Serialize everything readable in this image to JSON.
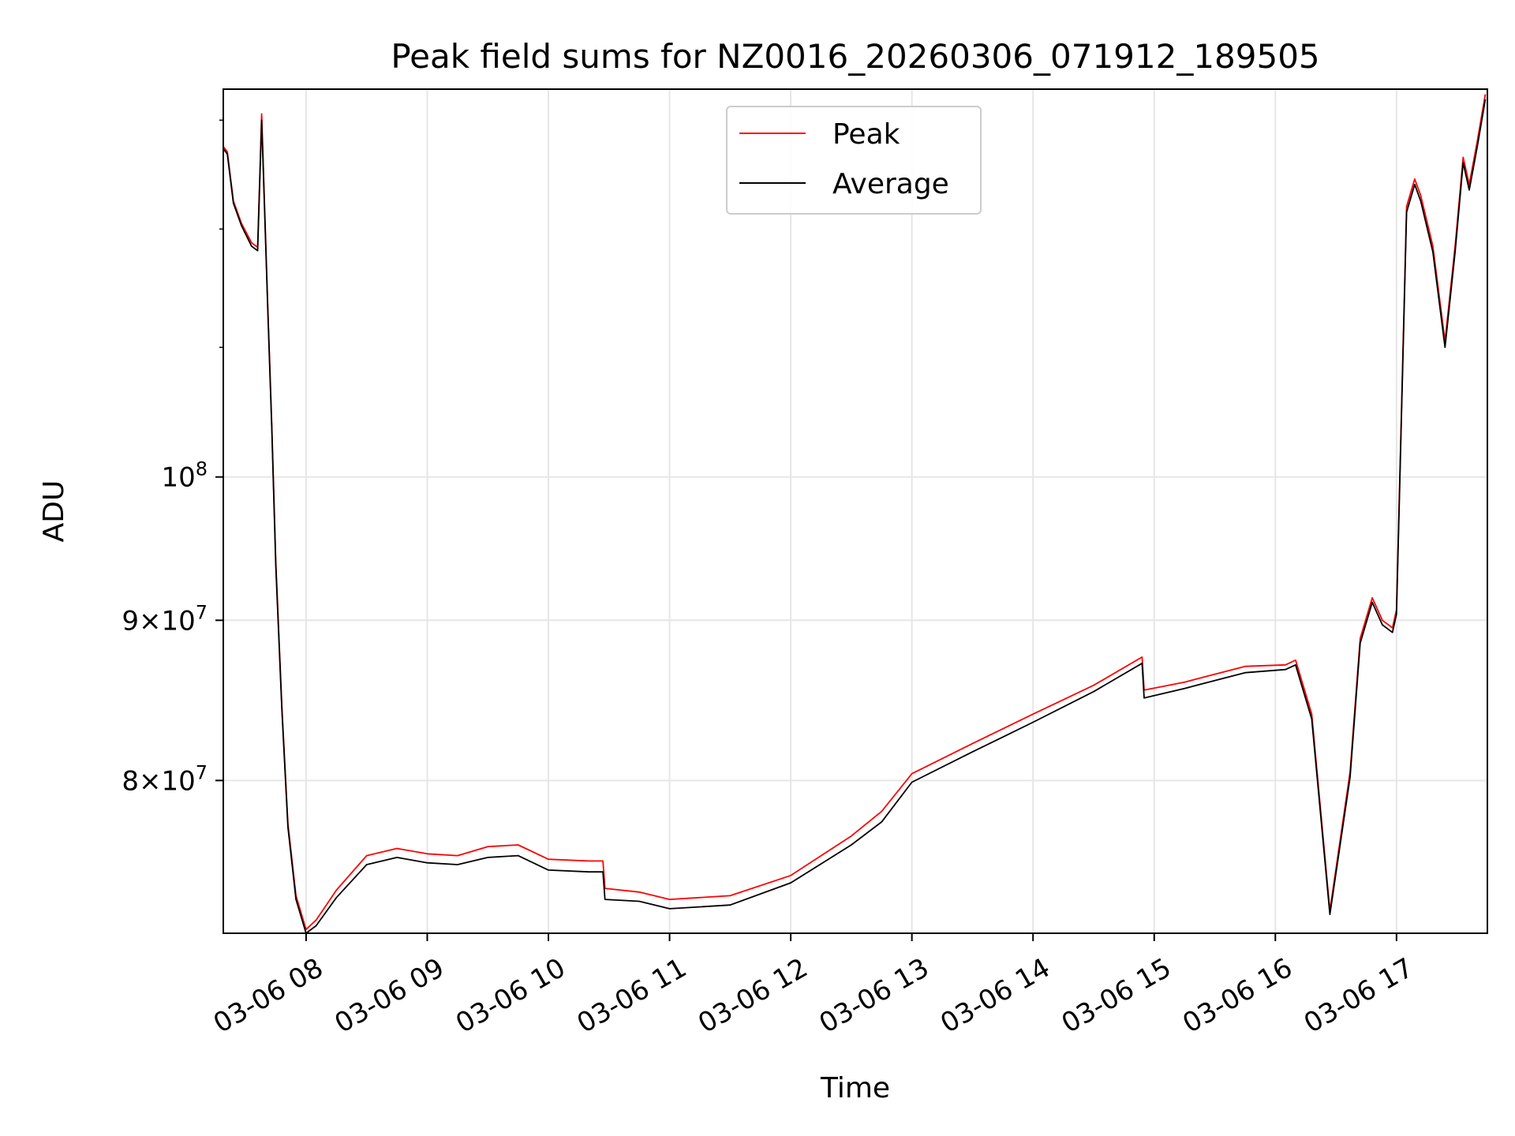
{
  "chart_data": {
    "type": "line",
    "title": "Peak field sums for NZ0016_20260306_071912_189505",
    "xlabel": "Time",
    "ylabel": "ADU",
    "yscale": "log",
    "grid": true,
    "legend_position": "upper center",
    "xlim": [
      "2026-03-06 07:19",
      "2026-03-06 17:45"
    ],
    "ylim": [
      71500000,
      133000000
    ],
    "x_ticks": [
      "03-06 08",
      "03-06 09",
      "03-06 10",
      "03-06 11",
      "03-06 12",
      "03-06 13",
      "03-06 14",
      "03-06 15",
      "03-06 16",
      "03-06 17"
    ],
    "y_ticks": [
      {
        "value": 80000000,
        "label": "8 × 10^7"
      },
      {
        "value": 90000000,
        "label": "9 × 10^7"
      },
      {
        "value": 100000000,
        "label": "10^8"
      }
    ],
    "series": [
      {
        "name": "Peak",
        "color": "#ff0000",
        "x": [
          "2026-03-06 07:19",
          "2026-03-06 07:21",
          "2026-03-06 07:24",
          "2026-03-06 07:28",
          "2026-03-06 07:33",
          "2026-03-06 07:36",
          "2026-03-06 07:38",
          "2026-03-06 07:40",
          "2026-03-06 07:41",
          "2026-03-06 07:43",
          "2026-03-06 07:45",
          "2026-03-06 07:48",
          "2026-03-06 07:51",
          "2026-03-06 07:55",
          "2026-03-06 08:00",
          "2026-03-06 08:05",
          "2026-03-06 08:15",
          "2026-03-06 08:30",
          "2026-03-06 08:45",
          "2026-03-06 09:00",
          "2026-03-06 09:15",
          "2026-03-06 09:30",
          "2026-03-06 09:45",
          "2026-03-06 10:00",
          "2026-03-06 10:20",
          "2026-03-06 10:27",
          "2026-03-06 10:28",
          "2026-03-06 10:45",
          "2026-03-06 11:00",
          "2026-03-06 11:30",
          "2026-03-06 12:00",
          "2026-03-06 12:30",
          "2026-03-06 12:45",
          "2026-03-06 13:00",
          "2026-03-06 13:30",
          "2026-03-06 14:00",
          "2026-03-06 14:30",
          "2026-03-06 14:54",
          "2026-03-06 14:55",
          "2026-03-06 15:15",
          "2026-03-06 15:45",
          "2026-03-06 16:05",
          "2026-03-06 16:10",
          "2026-03-06 16:18",
          "2026-03-06 16:27",
          "2026-03-06 16:37",
          "2026-03-06 16:42",
          "2026-03-06 16:48",
          "2026-03-06 16:53",
          "2026-03-06 16:58",
          "2026-03-06 17:00",
          "2026-03-06 17:05",
          "2026-03-06 17:09",
          "2026-03-06 17:12",
          "2026-03-06 17:18",
          "2026-03-06 17:24",
          "2026-03-06 17:29",
          "2026-03-06 17:33",
          "2026-03-06 17:36",
          "2026-03-06 17:40",
          "2026-03-06 17:44"
        ],
        "y": [
          127500000,
          127000000,
          122500000,
          120500000,
          118800000,
          118400000,
          130600000,
          119000000,
          113500000,
          104000000,
          94000000,
          84500000,
          77500000,
          73500000,
          71700000,
          72200000,
          73800000,
          75700000,
          76100000,
          75800000,
          75700000,
          76200000,
          76300000,
          75500000,
          75400000,
          75400000,
          73900000,
          73700000,
          73300000,
          73500000,
          74600000,
          76800000,
          78200000,
          80400000,
          82200000,
          84000000,
          85800000,
          87600000,
          85500000,
          86000000,
          87000000,
          87100000,
          87400000,
          84000000,
          72700000,
          80500000,
          88800000,
          91500000,
          90000000,
          89500000,
          90700000,
          122000000,
          124500000,
          123000000,
          118500000,
          110500000,
          118500000,
          126500000,
          124000000,
          128000000,
          132500000
        ]
      },
      {
        "name": "Average",
        "color": "#000000",
        "x": [
          "2026-03-06 07:19",
          "2026-03-06 07:21",
          "2026-03-06 07:24",
          "2026-03-06 07:28",
          "2026-03-06 07:33",
          "2026-03-06 07:36",
          "2026-03-06 07:38",
          "2026-03-06 07:40",
          "2026-03-06 07:41",
          "2026-03-06 07:43",
          "2026-03-06 07:45",
          "2026-03-06 07:48",
          "2026-03-06 07:51",
          "2026-03-06 07:55",
          "2026-03-06 08:00",
          "2026-03-06 08:05",
          "2026-03-06 08:15",
          "2026-03-06 08:30",
          "2026-03-06 08:45",
          "2026-03-06 09:00",
          "2026-03-06 09:15",
          "2026-03-06 09:30",
          "2026-03-06 09:45",
          "2026-03-06 10:00",
          "2026-03-06 10:20",
          "2026-03-06 10:27",
          "2026-03-06 10:28",
          "2026-03-06 10:45",
          "2026-03-06 11:00",
          "2026-03-06 11:30",
          "2026-03-06 12:00",
          "2026-03-06 12:30",
          "2026-03-06 12:45",
          "2026-03-06 13:00",
          "2026-03-06 13:30",
          "2026-03-06 14:00",
          "2026-03-06 14:30",
          "2026-03-06 14:54",
          "2026-03-06 14:55",
          "2026-03-06 15:15",
          "2026-03-06 15:45",
          "2026-03-06 16:05",
          "2026-03-06 16:10",
          "2026-03-06 16:18",
          "2026-03-06 16:27",
          "2026-03-06 16:37",
          "2026-03-06 16:42",
          "2026-03-06 16:48",
          "2026-03-06 16:53",
          "2026-03-06 16:58",
          "2026-03-06 17:00",
          "2026-03-06 17:05",
          "2026-03-06 17:09",
          "2026-03-06 17:12",
          "2026-03-06 17:18",
          "2026-03-06 17:24",
          "2026-03-06 17:29",
          "2026-03-06 17:33",
          "2026-03-06 17:36",
          "2026-03-06 17:40",
          "2026-03-06 17:44"
        ],
        "y": [
          127300000,
          126800000,
          122300000,
          120300000,
          118500000,
          118100000,
          130000000,
          118700000,
          113200000,
          103700000,
          93700000,
          84300000,
          77300000,
          73300000,
          71500000,
          71900000,
          73400000,
          75200000,
          75600000,
          75300000,
          75200000,
          75600000,
          75700000,
          74900000,
          74800000,
          74800000,
          73300000,
          73200000,
          72800000,
          73000000,
          74200000,
          76300000,
          77600000,
          79900000,
          81700000,
          83500000,
          85400000,
          87200000,
          85000000,
          85600000,
          86600000,
          86800000,
          87100000,
          83700000,
          72500000,
          80200000,
          88500000,
          91200000,
          89700000,
          89200000,
          90400000,
          121500000,
          124000000,
          122500000,
          118000000,
          110000000,
          118000000,
          126000000,
          123500000,
          127500000,
          132000000
        ]
      }
    ]
  }
}
